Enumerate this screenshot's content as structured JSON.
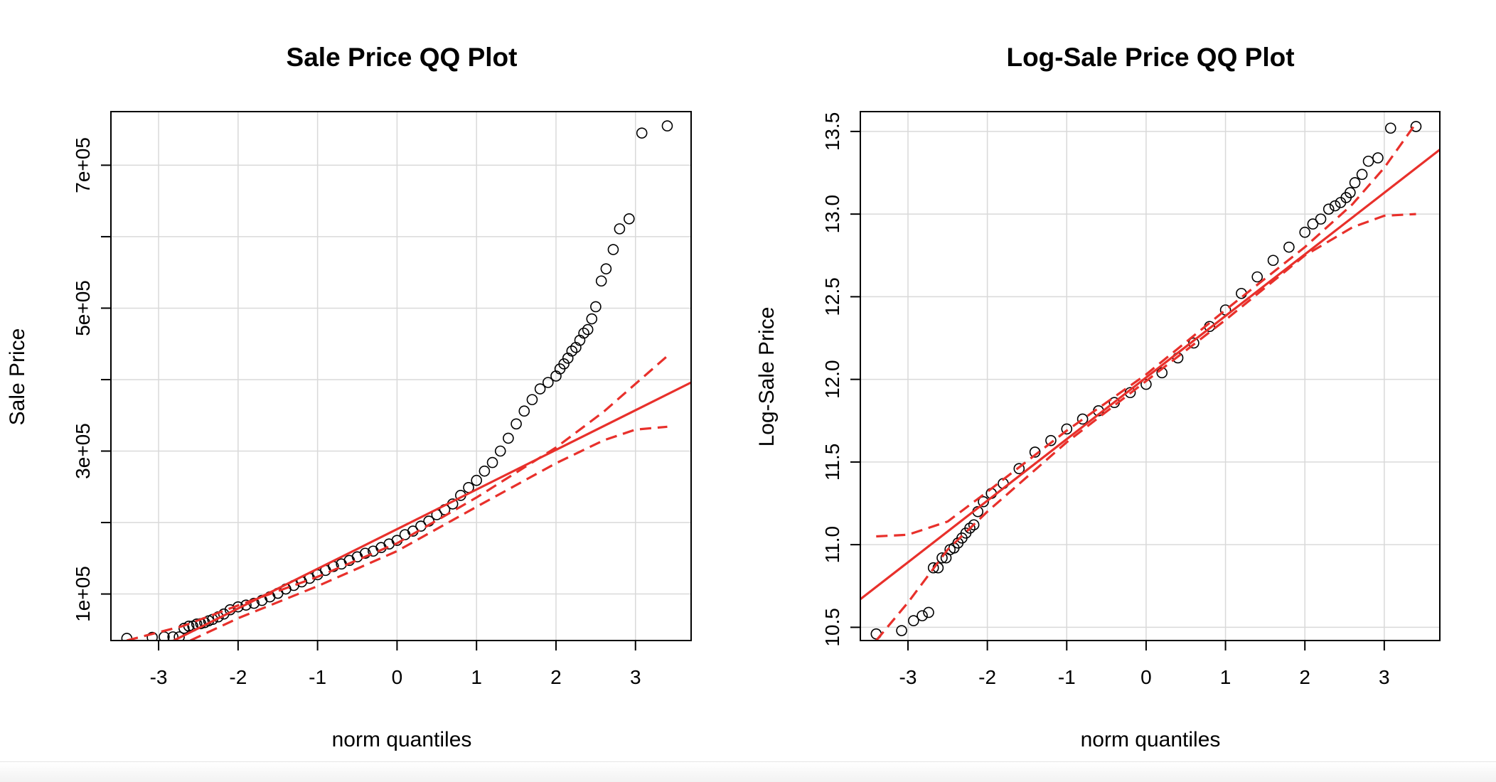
{
  "colors": {
    "background": "#ffffff",
    "grid": "#d9d9d9",
    "points": "#000000",
    "reference": "#e8302b"
  },
  "chart_data": [
    {
      "type": "scatter",
      "title": "Sale Price QQ Plot",
      "xlabel": "norm quantiles",
      "ylabel": "Sale Price",
      "xlim": [
        -3.6,
        3.7
      ],
      "ylim": [
        34900,
        775000
      ],
      "x_ticks": [
        -3,
        -2,
        -1,
        0,
        1,
        2,
        3
      ],
      "x_tick_labels": [
        "-3",
        "-2",
        "-1",
        "0",
        "1",
        "2",
        "3"
      ],
      "y_ticks": [
        100000,
        300000,
        500000,
        700000
      ],
      "y_tick_labels": [
        "1e+05",
        "3e+05",
        "5e+05",
        "7e+05"
      ],
      "y_grid": [
        100000,
        200000,
        300000,
        400000,
        500000,
        600000,
        700000
      ],
      "grid": true,
      "series": [
        {
          "kind": "points",
          "x": [
            -3.4,
            -3.08,
            -2.93,
            -2.82,
            -2.74,
            -2.68,
            -2.62,
            -2.57,
            -2.52,
            -2.47,
            -2.42,
            -2.37,
            -2.32,
            -2.25,
            -2.18,
            -2.1,
            -2.0,
            -1.9,
            -1.8,
            -1.7,
            -1.6,
            -1.5,
            -1.4,
            -1.3,
            -1.2,
            -1.1,
            -1.0,
            -0.9,
            -0.8,
            -0.7,
            -0.6,
            -0.5,
            -0.4,
            -0.3,
            -0.2,
            -0.1,
            0.0,
            0.1,
            0.2,
            0.3,
            0.4,
            0.5,
            0.6,
            0.7,
            0.8,
            0.9,
            1.0,
            1.1,
            1.2,
            1.3,
            1.4,
            1.5,
            1.6,
            1.7,
            1.8,
            1.9,
            2.0,
            2.05,
            2.1,
            2.15,
            2.2,
            2.25,
            2.3,
            2.35,
            2.4,
            2.45,
            2.5,
            2.57,
            2.63,
            2.72,
            2.8,
            2.92,
            3.08,
            3.4
          ],
          "y": [
            37900,
            39300,
            40000,
            40000,
            40000,
            52000,
            55000,
            55000,
            58000,
            58500,
            60000,
            62500,
            64500,
            68000,
            72000,
            78000,
            82000,
            84500,
            87000,
            91000,
            96000,
            101000,
            107000,
            112000,
            117000,
            122000,
            127000,
            133000,
            138500,
            142000,
            147000,
            152000,
            157000,
            160000,
            165000,
            170000,
            175000,
            183000,
            188000,
            195000,
            202000,
            211000,
            218000,
            226000,
            238000,
            249000,
            259000,
            272000,
            284000,
            300000,
            318000,
            338000,
            356000,
            372000,
            387000,
            396000,
            405000,
            415000,
            422000,
            430000,
            440000,
            445000,
            455000,
            465000,
            470000,
            485000,
            502000,
            538000,
            555000,
            582000,
            611000,
            625000,
            745000,
            755000
          ]
        },
        {
          "kind": "line",
          "name": "",
          "style": "solid",
          "x": [
            -3.6,
            3.7
          ],
          "y": [
            -9000,
            396000
          ]
        },
        {
          "kind": "line",
          "name": "",
          "style": "dashed",
          "x": [
            -3.4,
            -2.7,
            -2.0,
            -1.0,
            0.0,
            1.0,
            2.0,
            2.6,
            3.4
          ],
          "y": [
            35000,
            55000,
            84000,
            124000,
            171000,
            235000,
            305000,
            355000,
            433000
          ]
        },
        {
          "kind": "line",
          "name": "",
          "style": "dashed",
          "x": [
            -2.6,
            -2.0,
            -1.0,
            0.0,
            1.0,
            2.0,
            2.6,
            3.0,
            3.4
          ],
          "y": [
            35000,
            66000,
            111000,
            160000,
            222000,
            283000,
            315000,
            330000,
            334000
          ]
        }
      ]
    },
    {
      "type": "scatter",
      "title": "Log-Sale Price QQ Plot",
      "xlabel": "norm quantiles",
      "ylabel": "Log-Sale Price",
      "xlim": [
        -3.6,
        3.7
      ],
      "ylim": [
        10.42,
        13.62
      ],
      "x_ticks": [
        -3,
        -2,
        -1,
        0,
        1,
        2,
        3
      ],
      "x_tick_labels": [
        "-3",
        "-2",
        "-1",
        "0",
        "1",
        "2",
        "3"
      ],
      "y_ticks": [
        10.5,
        11.0,
        11.5,
        12.0,
        12.5,
        13.0,
        13.5
      ],
      "y_tick_labels": [
        "10.5",
        "11.0",
        "11.5",
        "12.0",
        "12.5",
        "13.0",
        "13.5"
      ],
      "y_grid": [
        10.5,
        11.0,
        11.5,
        12.0,
        12.5,
        13.0,
        13.5
      ],
      "grid": true,
      "series": [
        {
          "kind": "points",
          "x": [
            -3.4,
            -3.08,
            -2.93,
            -2.82,
            -2.74,
            -2.68,
            -2.62,
            -2.57,
            -2.52,
            -2.47,
            -2.42,
            -2.37,
            -2.32,
            -2.27,
            -2.22,
            -2.17,
            -2.12,
            -2.05,
            -1.95,
            -1.8,
            -1.6,
            -1.4,
            -1.2,
            -1.0,
            -0.8,
            -0.6,
            -0.4,
            -0.2,
            0.0,
            0.2,
            0.4,
            0.6,
            0.8,
            1.0,
            1.2,
            1.4,
            1.6,
            1.8,
            2.0,
            2.1,
            2.2,
            2.3,
            2.38,
            2.45,
            2.52,
            2.57,
            2.63,
            2.72,
            2.8,
            2.92,
            3.08,
            3.4
          ],
          "y": [
            10.46,
            10.48,
            10.54,
            10.57,
            10.59,
            10.86,
            10.86,
            10.92,
            10.92,
            10.97,
            10.98,
            11.01,
            11.04,
            11.07,
            11.1,
            11.12,
            11.2,
            11.26,
            11.31,
            11.37,
            11.46,
            11.56,
            11.63,
            11.7,
            11.76,
            11.81,
            11.86,
            11.92,
            11.97,
            12.04,
            12.13,
            12.22,
            12.32,
            12.42,
            12.52,
            12.62,
            12.72,
            12.8,
            12.89,
            12.94,
            12.97,
            13.03,
            13.05,
            13.07,
            13.1,
            13.13,
            13.19,
            13.24,
            13.32,
            13.34,
            13.52,
            13.53
          ]
        },
        {
          "kind": "line",
          "name": "",
          "style": "solid",
          "x": [
            -3.6,
            3.7
          ],
          "y": [
            10.67,
            13.39
          ]
        },
        {
          "kind": "line",
          "name": "",
          "style": "dashed",
          "x": [
            -3.4,
            -3.0,
            -2.5,
            -2.0,
            -1.0,
            0.0,
            1.0,
            2.0,
            2.6,
            3.0,
            3.4
          ],
          "y": [
            11.05,
            11.06,
            11.14,
            11.32,
            11.69,
            12.03,
            12.42,
            12.8,
            13.06,
            13.28,
            13.55
          ]
        },
        {
          "kind": "line",
          "name": "",
          "style": "dashed",
          "x": [
            -3.4,
            -3.0,
            -2.5,
            -2.0,
            -1.0,
            0.0,
            1.0,
            2.0,
            2.6,
            3.0,
            3.4
          ],
          "y": [
            10.42,
            10.65,
            10.97,
            11.2,
            11.62,
            11.99,
            12.36,
            12.75,
            12.92,
            12.99,
            13.0
          ]
        }
      ]
    }
  ]
}
